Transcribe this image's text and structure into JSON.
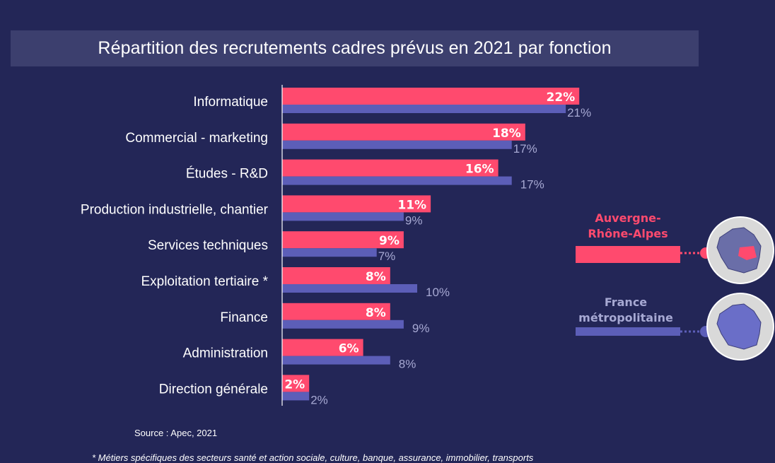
{
  "title": "Répartition des recrutements cadres prévus en 2021 par fonction",
  "source": "Source : Apec, 2021",
  "footnote": "* Métiers spécifiques des secteurs santé et action sociale, culture, banque, assurance, immobilier, transports",
  "colors": {
    "background": "#232657",
    "title_bar": "#3c3f6e",
    "auvergne": "#ff4a6e",
    "france": "#5c5eb8",
    "france_label": "#a7a9d3"
  },
  "chart_data": {
    "type": "bar",
    "orientation": "horizontal",
    "categories": [
      "Informatique",
      "Commercial - marketing",
      "Études - R&D",
      "Production industrielle, chantier",
      "Services techniques",
      "Exploitation tertiaire *",
      "Finance",
      "Administration",
      "Direction générale"
    ],
    "series": [
      {
        "name": "Auvergne-Rhône-Alpes",
        "values": [
          22,
          18,
          16,
          11,
          9,
          8,
          8,
          6,
          2
        ]
      },
      {
        "name": "France métropolitaine",
        "values": [
          21,
          17,
          17,
          9,
          7,
          10,
          9,
          8,
          2
        ]
      }
    ],
    "value_suffix": "%",
    "legend": [
      {
        "line1": "Auvergne-",
        "line2": "Rhône-Alpes"
      },
      {
        "line1": "France",
        "line2": "métropolitaine"
      }
    ],
    "legend_position": "right"
  }
}
